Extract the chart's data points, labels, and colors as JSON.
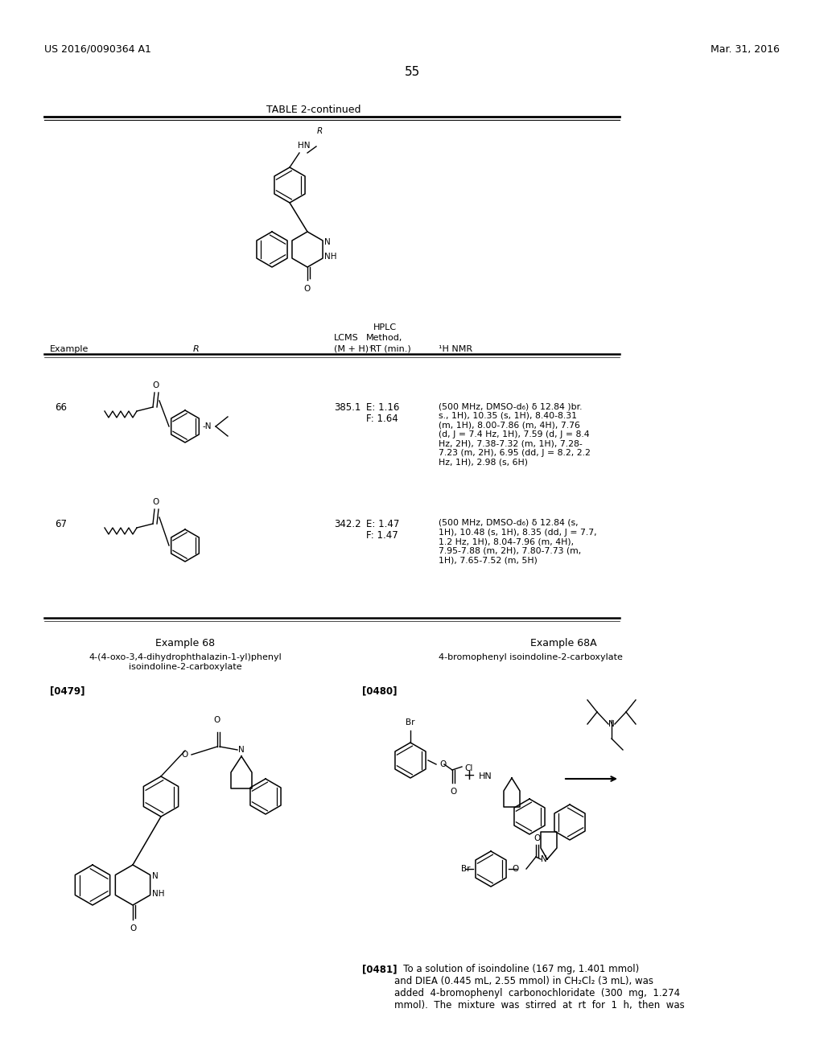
{
  "bg_color": "#ffffff",
  "header_left": "US 2016/0090364 A1",
  "header_right": "Mar. 31, 2016",
  "page_number": "55",
  "table_title": "TABLE 2-continued",
  "row66_example": "66",
  "row66_lcms": "385.1",
  "row66_hplc_e": "E: 1.16",
  "row66_hplc_f": "F: 1.64",
  "row66_nmr": "(500 MHz, DMSO-d₆) δ 12.84 )br.\ns., 1H), 10.35 (s, 1H), 8.40-8.31\n(m, 1H), 8.00-7.86 (m, 4H), 7.76\n(d, J = 7.4 Hz, 1H), 7.59 (d, J = 8.4\nHz, 2H), 7.38-7.32 (m, 1H), 7.28-\n7.23 (m, 2H), 6.95 (dd, J = 8.2, 2.2\nHz, 1H), 2.98 (s, 6H)",
  "row67_example": "67",
  "row67_lcms": "342.2",
  "row67_hplc_e": "E: 1.47",
  "row67_hplc_f": "F: 1.47",
  "row67_nmr": "(500 MHz, DMSO-d₆) δ 12.84 (s,\n1H), 10.48 (s, 1H), 8.35 (dd, J = 7.7,\n1.2 Hz, 1H), 8.04-7.96 (m, 4H),\n7.95-7.88 (m, 2H), 7.80-7.73 (m,\n1H), 7.65-7.52 (m, 5H)",
  "ex68_title": "Example 68",
  "ex68A_title": "Example 68A",
  "ex68_compound": "4-(4-oxo-3,4-dihydrophthalazin-1-yl)phenyl\nisoindoline-2-carboxylate",
  "ex68A_compound": "4-bromophenyl isoindoline-2-carboxylate",
  "tag_479": "[0479]",
  "tag_480": "[0480]",
  "tag_481": "[0481]",
  "text_481": "   To a solution of isoindoline (167 mg, 1.401 mmol)\nand DIEA (0.445 mL, 2.55 mmol) in CH₂Cl₂ (3 mL), was\nadded  4-bromophenyl  carbonochloridate  (300  mg,  1.274\nmmol).  The  mixture  was  stirred  at  rt  for  1  h,  then  was"
}
